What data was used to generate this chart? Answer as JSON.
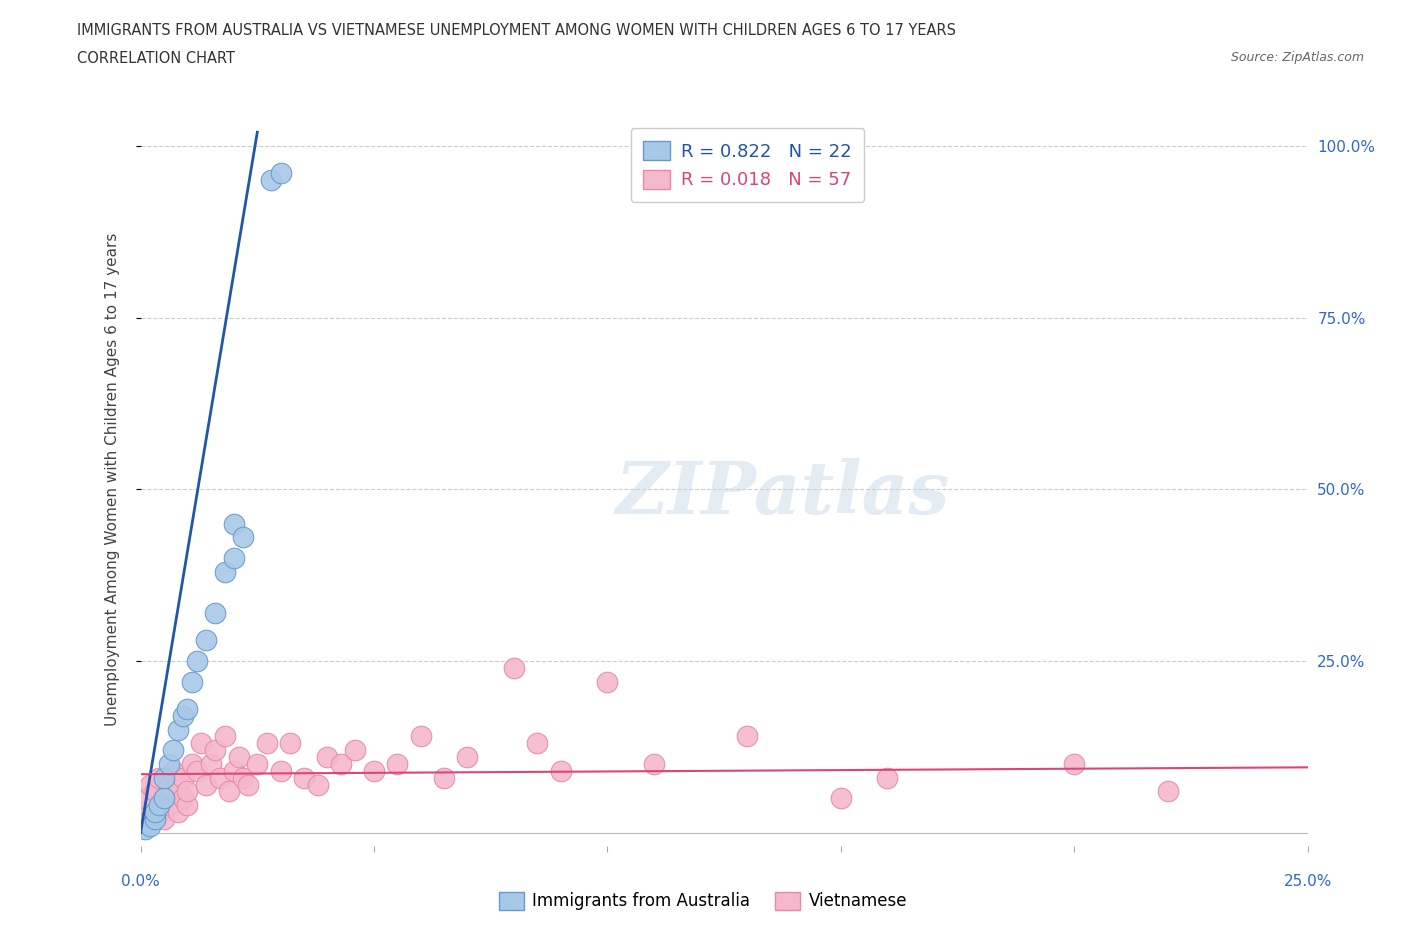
{
  "title_line1": "IMMIGRANTS FROM AUSTRALIA VS VIETNAMESE UNEMPLOYMENT AMONG WOMEN WITH CHILDREN AGES 6 TO 17 YEARS",
  "title_line2": "CORRELATION CHART",
  "source_text": "Source: ZipAtlas.com",
  "ylabel": "Unemployment Among Women with Children Ages 6 to 17 years",
  "xlim": [
    0.0,
    0.25
  ],
  "ylim": [
    -0.02,
    1.05
  ],
  "xtick_positions": [
    0.0,
    0.05,
    0.1,
    0.15,
    0.2,
    0.25
  ],
  "ytick_positions": [
    0.25,
    0.5,
    0.75,
    1.0
  ],
  "ytick_labels_right": [
    "25.0%",
    "50.0%",
    "75.0%",
    "100.0%"
  ],
  "background_color": "#ffffff",
  "grid_color": "#cccccc",
  "australia_color": "#a8c8e8",
  "vietnamese_color": "#f4b8cc",
  "australia_edge": "#6699cc",
  "vietnamese_edge": "#e888a8",
  "australia_trend_color": "#2255aa",
  "vietnamese_trend_color": "#dd4477",
  "legend_label1": "R = 0.822   N = 22",
  "legend_label2": "R = 0.018   N = 57",
  "australia_x": [
    0.001,
    0.002,
    0.003,
    0.003,
    0.004,
    0.005,
    0.005,
    0.006,
    0.007,
    0.008,
    0.009,
    0.01,
    0.011,
    0.012,
    0.014,
    0.016,
    0.018,
    0.02,
    0.02,
    0.022,
    0.028,
    0.03
  ],
  "australia_y": [
    0.005,
    0.01,
    0.02,
    0.03,
    0.04,
    0.05,
    0.08,
    0.1,
    0.12,
    0.15,
    0.17,
    0.18,
    0.22,
    0.25,
    0.28,
    0.32,
    0.38,
    0.4,
    0.45,
    0.43,
    0.95,
    0.96
  ],
  "vietnamese_x": [
    0.001,
    0.001,
    0.002,
    0.002,
    0.003,
    0.003,
    0.004,
    0.004,
    0.005,
    0.005,
    0.006,
    0.006,
    0.007,
    0.007,
    0.008,
    0.008,
    0.009,
    0.009,
    0.01,
    0.01,
    0.011,
    0.012,
    0.013,
    0.014,
    0.015,
    0.016,
    0.017,
    0.018,
    0.019,
    0.02,
    0.021,
    0.022,
    0.023,
    0.025,
    0.027,
    0.03,
    0.032,
    0.035,
    0.038,
    0.04,
    0.043,
    0.046,
    0.05,
    0.055,
    0.06,
    0.065,
    0.07,
    0.08,
    0.085,
    0.09,
    0.1,
    0.11,
    0.13,
    0.15,
    0.16,
    0.2,
    0.22
  ],
  "vietnamese_y": [
    0.03,
    0.05,
    0.02,
    0.07,
    0.04,
    0.06,
    0.03,
    0.08,
    0.02,
    0.05,
    0.07,
    0.04,
    0.06,
    0.09,
    0.03,
    0.07,
    0.05,
    0.08,
    0.04,
    0.06,
    0.1,
    0.09,
    0.13,
    0.07,
    0.1,
    0.12,
    0.08,
    0.14,
    0.06,
    0.09,
    0.11,
    0.08,
    0.07,
    0.1,
    0.13,
    0.09,
    0.13,
    0.08,
    0.07,
    0.11,
    0.1,
    0.12,
    0.09,
    0.1,
    0.14,
    0.08,
    0.11,
    0.24,
    0.13,
    0.09,
    0.22,
    0.1,
    0.14,
    0.05,
    0.08,
    0.1,
    0.06
  ],
  "aus_trend_x0": 0.0,
  "aus_trend_x1": 0.025,
  "aus_trend_y0": 0.0,
  "aus_trend_y1": 1.02,
  "viet_trend_x0": 0.0,
  "viet_trend_x1": 0.25,
  "viet_trend_y0": 0.085,
  "viet_trend_y1": 0.095
}
